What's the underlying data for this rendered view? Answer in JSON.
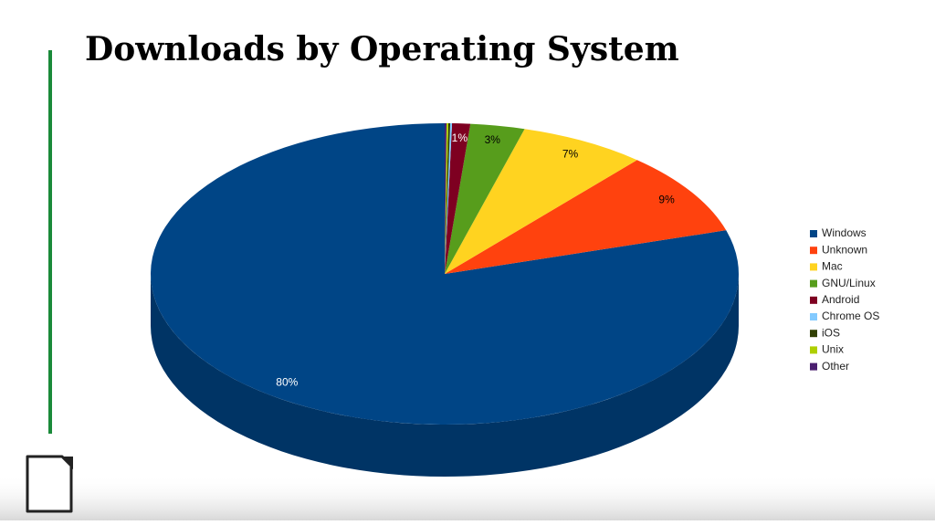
{
  "chart_data": {
    "type": "pie3d",
    "title": "Downloads by Operating System",
    "categories": [
      "Windows",
      "Unknown",
      "Mac",
      "GNU/Linux",
      "Android",
      "Chrome OS",
      "iOS",
      "Unix",
      "Other"
    ],
    "values": [
      80,
      9,
      7,
      3,
      1,
      0.1,
      0.1,
      0.1,
      0.1
    ],
    "value_labels": [
      "80%",
      "9%",
      "7%",
      "3%",
      "1%",
      null,
      null,
      null,
      null
    ],
    "colors": [
      "#004586",
      "#ff420e",
      "#ffd320",
      "#579d1c",
      "#7e0021",
      "#83caff",
      "#314004",
      "#aecf00",
      "#4b1f6f"
    ],
    "legend": "right"
  }
}
